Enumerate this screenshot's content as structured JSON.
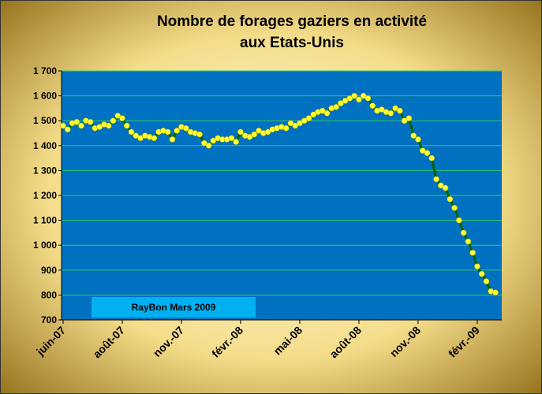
{
  "chart_data": {
    "type": "line",
    "title": [
      "Nombre de forages gaziers en activité",
      "aux Etats-Unis"
    ],
    "annotation": "RayBon  Mars 2009",
    "categories": [
      "juin-07",
      null,
      null,
      null,
      null,
      null,
      null,
      null,
      null,
      null,
      null,
      null,
      null,
      "août-07",
      null,
      null,
      null,
      null,
      null,
      null,
      null,
      null,
      null,
      null,
      null,
      null,
      "nov.-07",
      null,
      null,
      null,
      null,
      null,
      null,
      null,
      null,
      null,
      null,
      null,
      null,
      "févr.-08",
      null,
      null,
      null,
      null,
      null,
      null,
      null,
      null,
      null,
      null,
      null,
      null,
      "mai-08",
      null,
      null,
      null,
      null,
      null,
      null,
      null,
      null,
      null,
      null,
      null,
      null,
      "août-08",
      null,
      null,
      null,
      null,
      null,
      null,
      null,
      null,
      null,
      null,
      null,
      null,
      "nov.-08",
      null,
      null,
      null,
      null,
      null,
      null,
      null,
      null,
      null,
      null,
      null,
      null,
      "févr.-09",
      null,
      null,
      null,
      null
    ],
    "series": [
      {
        "color": "#006400",
        "marker_color": "#ffff33",
        "values": [
          1480,
          1465,
          1490,
          1495,
          1480,
          1500,
          1495,
          1470,
          1475,
          1485,
          1480,
          1500,
          1520,
          1510,
          1480,
          1455,
          1440,
          1430,
          1440,
          1435,
          1430,
          1455,
          1460,
          1455,
          1425,
          1460,
          1475,
          1470,
          1455,
          1450,
          1445,
          1410,
          1400,
          1420,
          1430,
          1425,
          1425,
          1430,
          1415,
          1455,
          1440,
          1435,
          1445,
          1460,
          1450,
          1455,
          1465,
          1470,
          1475,
          1470,
          1490,
          1480,
          1490,
          1500,
          1510,
          1525,
          1535,
          1540,
          1530,
          1550,
          1555,
          1570,
          1580,
          1590,
          1600,
          1585,
          1600,
          1590,
          1560,
          1540,
          1545,
          1535,
          1530,
          1550,
          1540,
          1500,
          1510,
          1440,
          1425,
          1380,
          1370,
          1350,
          1265,
          1240,
          1230,
          1185,
          1150,
          1100,
          1050,
          1015,
          970,
          915,
          885,
          855,
          815,
          810
        ]
      }
    ],
    "ylim": [
      700,
      1700
    ],
    "yticks": [
      700,
      800,
      900,
      {
        "value": 1000,
        "label": "1 000"
      },
      {
        "value": 1100,
        "label": "1 100"
      },
      {
        "value": 1200,
        "label": "1 200"
      },
      {
        "value": 1300,
        "label": "1 300"
      },
      {
        "value": 1400,
        "label": "1 400"
      },
      {
        "value": 1500,
        "label": "1 500"
      },
      {
        "value": 1600,
        "label": "1 600"
      },
      {
        "value": 1700,
        "label": "1 700"
      }
    ],
    "grid": true,
    "plot_color": "#0070c0",
    "grid_color": "#33cc66"
  }
}
